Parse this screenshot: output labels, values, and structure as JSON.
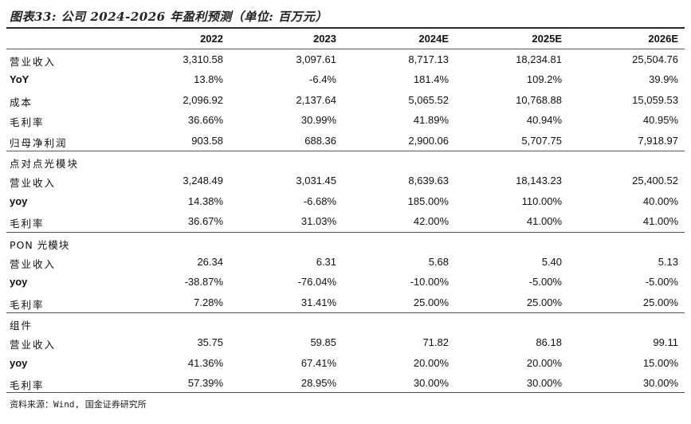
{
  "title": "图表33: 公司 2024-2026 年盈利预测（单位: 百万元）",
  "columns": [
    "2022",
    "2023",
    "2024E",
    "2025E",
    "2026E"
  ],
  "rows": [
    {
      "label": "营业收入",
      "values": [
        "3,310.58",
        "3,097.61",
        "8,717.13",
        "18,234.81",
        "25,504.76"
      ]
    },
    {
      "label": "YoY",
      "values": [
        "13.8%",
        "-6.4%",
        "181.4%",
        "109.2%",
        "39.9%"
      ]
    },
    {
      "label": "成本",
      "values": [
        "2,096.92",
        "2,137.64",
        "5,065.52",
        "10,768.88",
        "15,059.53"
      ]
    },
    {
      "label": "毛利率",
      "values": [
        "36.66%",
        "30.99%",
        "41.89%",
        "40.94%",
        "40.95%"
      ]
    },
    {
      "label": "归母净利润",
      "values": [
        "903.58",
        "688.36",
        "2,900.06",
        "5,707.75",
        "7,918.97"
      ]
    },
    {
      "label": "点对点光模块",
      "values": [
        "",
        "",
        "",
        "",
        ""
      ]
    },
    {
      "label": "营业收入",
      "values": [
        "3,248.49",
        "3,031.45",
        "8,639.63",
        "18,143.23",
        "25,400.52"
      ]
    },
    {
      "label": "yoy",
      "values": [
        "14.38%",
        "-6.68%",
        "185.00%",
        "110.00%",
        "40.00%"
      ]
    },
    {
      "label": "毛利率",
      "values": [
        "36.67%",
        "31.03%",
        "42.00%",
        "41.00%",
        "41.00%"
      ]
    },
    {
      "label": "PON 光模块",
      "values": [
        "",
        "",
        "",
        "",
        ""
      ]
    },
    {
      "label": "营业收入",
      "values": [
        "26.34",
        "6.31",
        "5.68",
        "5.40",
        "5.13"
      ]
    },
    {
      "label": "yoy",
      "values": [
        "-38.87%",
        "-76.04%",
        "-10.00%",
        "-5.00%",
        "-5.00%"
      ]
    },
    {
      "label": "毛利率",
      "values": [
        "7.28%",
        "31.41%",
        "25.00%",
        "25.00%",
        "25.00%"
      ]
    },
    {
      "label": "组件",
      "values": [
        "",
        "",
        "",
        "",
        ""
      ]
    },
    {
      "label": "营业收入",
      "values": [
        "35.75",
        "59.85",
        "71.82",
        "86.18",
        "99.11"
      ]
    },
    {
      "label": "yoy",
      "values": [
        "41.36%",
        "67.41%",
        "20.00%",
        "20.00%",
        "15.00%"
      ]
    },
    {
      "label": "毛利率",
      "values": [
        "57.39%",
        "28.95%",
        "30.00%",
        "30.00%",
        "30.00%"
      ]
    }
  ],
  "source": "资料来源：Wind, 国金证券研究所"
}
